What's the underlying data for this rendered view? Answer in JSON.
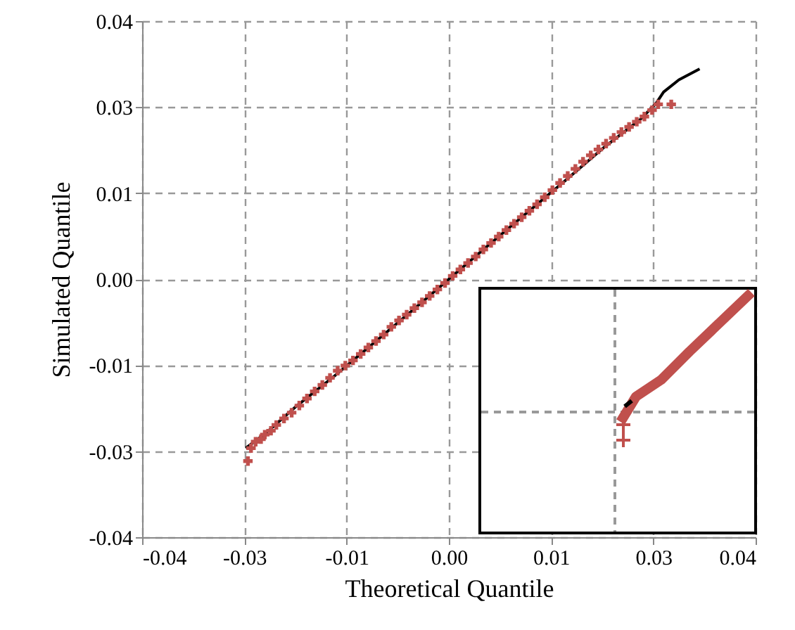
{
  "chart_data": {
    "type": "scatter",
    "xlabel": "Theoretical Quantile",
    "ylabel": "Simulated Quantile",
    "xlim": [
      -0.04,
      0.04
    ],
    "ylim": [
      -0.04,
      0.04
    ],
    "xticks": [
      -0.04,
      {
        "value": -0.02667,
        "label": "-0.03"
      },
      {
        "value": -0.01333,
        "label": "-0.01"
      },
      {
        "value": 0,
        "label": "0.00"
      },
      {
        "value": 0.01333,
        "label": "0.01"
      },
      {
        "value": 0.02667,
        "label": "0.03"
      },
      0.04
    ],
    "yticks": [
      -0.04,
      {
        "value": -0.02667,
        "label": "-0.03"
      },
      {
        "value": -0.01333,
        "label": "-0.01"
      },
      {
        "value": 0,
        "label": "0.00"
      },
      {
        "value": 0.01333,
        "label": "0.01"
      },
      {
        "value": 0.02667,
        "label": "0.03"
      },
      0.04
    ],
    "grid": true,
    "series": [
      {
        "type": "line",
        "color": "#000000",
        "marker": "none",
        "x": [
          -0.0265,
          -0.024,
          -0.02,
          -0.015,
          -0.01,
          -0.005,
          0,
          0.005,
          0.01,
          0.015,
          0.02,
          0.025,
          0.027,
          0.028,
          0.03,
          0.0327
        ],
        "values": [
          -0.0262,
          -0.024,
          -0.0198,
          -0.0151,
          -0.0101,
          -0.0051,
          0,
          0.0051,
          0.0101,
          0.0151,
          0.0202,
          0.0248,
          0.0272,
          0.029,
          0.0309,
          0.0326
        ]
      },
      {
        "color": "#c0504d",
        "marker": "cross",
        "x": [
          -0.0262,
          -0.0258,
          -0.0252,
          -0.0245,
          -0.024,
          -0.0232,
          -0.0225,
          -0.0215,
          -0.0205,
          -0.0195,
          -0.0185,
          -0.0175,
          -0.0165,
          -0.0155,
          -0.0145,
          -0.0135,
          -0.0125,
          -0.0115,
          -0.0105,
          -0.0095,
          -0.0085,
          -0.0075,
          -0.0065,
          -0.0055,
          -0.0045,
          -0.0035,
          -0.0025,
          -0.0015,
          -0.0005,
          0.0005,
          0.0015,
          0.0025,
          0.0035,
          0.0045,
          0.0055,
          0.0065,
          0.0075,
          0.0085,
          0.0095,
          0.0105,
          0.0115,
          0.0125,
          0.0135,
          0.0145,
          0.0155,
          0.0165,
          0.0175,
          0.0185,
          0.0195,
          0.0205,
          0.0215,
          0.0225,
          0.0235,
          0.0245,
          0.0255,
          0.0265,
          0.0273,
          0.029
        ],
        "values": [
          -0.0282,
          -0.0262,
          -0.0252,
          -0.0248,
          -0.0241,
          -0.0235,
          -0.0226,
          -0.0216,
          -0.0207,
          -0.0196,
          -0.0185,
          -0.0174,
          -0.0164,
          -0.0153,
          -0.0142,
          -0.0134,
          -0.0126,
          -0.0116,
          -0.0106,
          -0.0096,
          -0.0086,
          -0.0074,
          -0.0064,
          -0.0055,
          -0.0045,
          -0.0036,
          -0.0026,
          -0.0016,
          -0.0006,
          0.0005,
          0.0015,
          0.0025,
          0.0035,
          0.0046,
          0.0056,
          0.0066,
          0.0076,
          0.0086,
          0.0096,
          0.0106,
          0.0116,
          0.0127,
          0.0138,
          0.0149,
          0.016,
          0.0171,
          0.0182,
          0.0192,
          0.0201,
          0.021,
          0.0219,
          0.0228,
          0.0236,
          0.0244,
          0.0252,
          0.0262,
          0.0271,
          0.0271
        ]
      }
    ]
  }
}
